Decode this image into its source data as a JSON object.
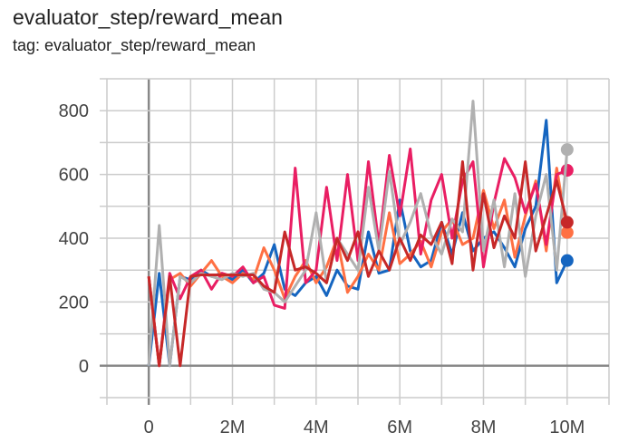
{
  "title": "evaluator_step/reward_mean",
  "subtitle": "tag: evaluator_step/reward_mean",
  "chart_data": {
    "type": "line",
    "xlim": [
      -1,
      11
    ],
    "ylim": [
      -100,
      900
    ],
    "grid": true,
    "x_ticks": [
      0,
      2,
      4,
      6,
      8,
      10
    ],
    "x_tick_labels": [
      "0",
      "2M",
      "4M",
      "6M",
      "8M",
      "10M"
    ],
    "y_ticks": [
      0,
      200,
      400,
      600,
      800
    ],
    "y_tick_labels": [
      "0",
      "200",
      "400",
      "600",
      "800"
    ],
    "x": [
      0,
      0.25,
      0.5,
      0.75,
      1,
      1.25,
      1.5,
      1.75,
      2,
      2.25,
      2.5,
      2.75,
      3,
      3.25,
      3.5,
      3.75,
      4,
      4.25,
      4.5,
      4.75,
      5,
      5.25,
      5.5,
      5.75,
      6,
      6.25,
      6.5,
      6.75,
      7,
      7.25,
      7.5,
      7.75,
      8,
      8.25,
      8.5,
      8.75,
      9,
      9.25,
      9.5,
      9.75,
      10
    ],
    "series": [
      {
        "color": "#1565c0",
        "values": [
          0,
          290,
          0,
          280,
          270,
          300,
          280,
          290,
          270,
          300,
          260,
          290,
          380,
          240,
          220,
          260,
          280,
          220,
          300,
          250,
          240,
          420,
          290,
          300,
          520,
          360,
          310,
          330,
          450,
          350,
          480,
          360,
          400,
          420,
          370,
          310,
          430,
          500,
          770,
          260,
          330
        ]
      },
      {
        "color": "#ff7043",
        "values": [
          280,
          0,
          270,
          290,
          250,
          290,
          330,
          280,
          260,
          290,
          270,
          370,
          300,
          210,
          280,
          330,
          260,
          310,
          400,
          230,
          280,
          350,
          300,
          480,
          320,
          350,
          390,
          310,
          420,
          460,
          380,
          400,
          550,
          430,
          520,
          340,
          470,
          580,
          360,
          620,
          418
        ]
      },
      {
        "color": "#e91e63",
        "values": [
          280,
          0,
          290,
          210,
          280,
          300,
          240,
          290,
          280,
          310,
          260,
          280,
          190,
          180,
          620,
          260,
          300,
          560,
          330,
          600,
          330,
          640,
          380,
          660,
          470,
          680,
          350,
          520,
          600,
          400,
          580,
          640,
          310,
          510,
          650,
          590,
          480,
          570,
          380,
          600,
          613
        ]
      },
      {
        "color": "#b0b0b0",
        "values": [
          0,
          440,
          0,
          280,
          260,
          290,
          280,
          270,
          290,
          280,
          290,
          240,
          230,
          200,
          250,
          300,
          480,
          260,
          400,
          350,
          300,
          560,
          360,
          610,
          380,
          450,
          540,
          410,
          350,
          460,
          420,
          830,
          360,
          520,
          310,
          540,
          280,
          470,
          600,
          300,
          678
        ]
      },
      {
        "color": "#c62828",
        "values": [
          280,
          0,
          280,
          0,
          280,
          285,
          285,
          285,
          285,
          285,
          285,
          250,
          230,
          420,
          300,
          310,
          290,
          260,
          400,
          330,
          420,
          280,
          360,
          300,
          400,
          330,
          410,
          380,
          450,
          320,
          640,
          300,
          540,
          370,
          470,
          400,
          640,
          360,
          470,
          580,
          450
        ]
      }
    ]
  }
}
